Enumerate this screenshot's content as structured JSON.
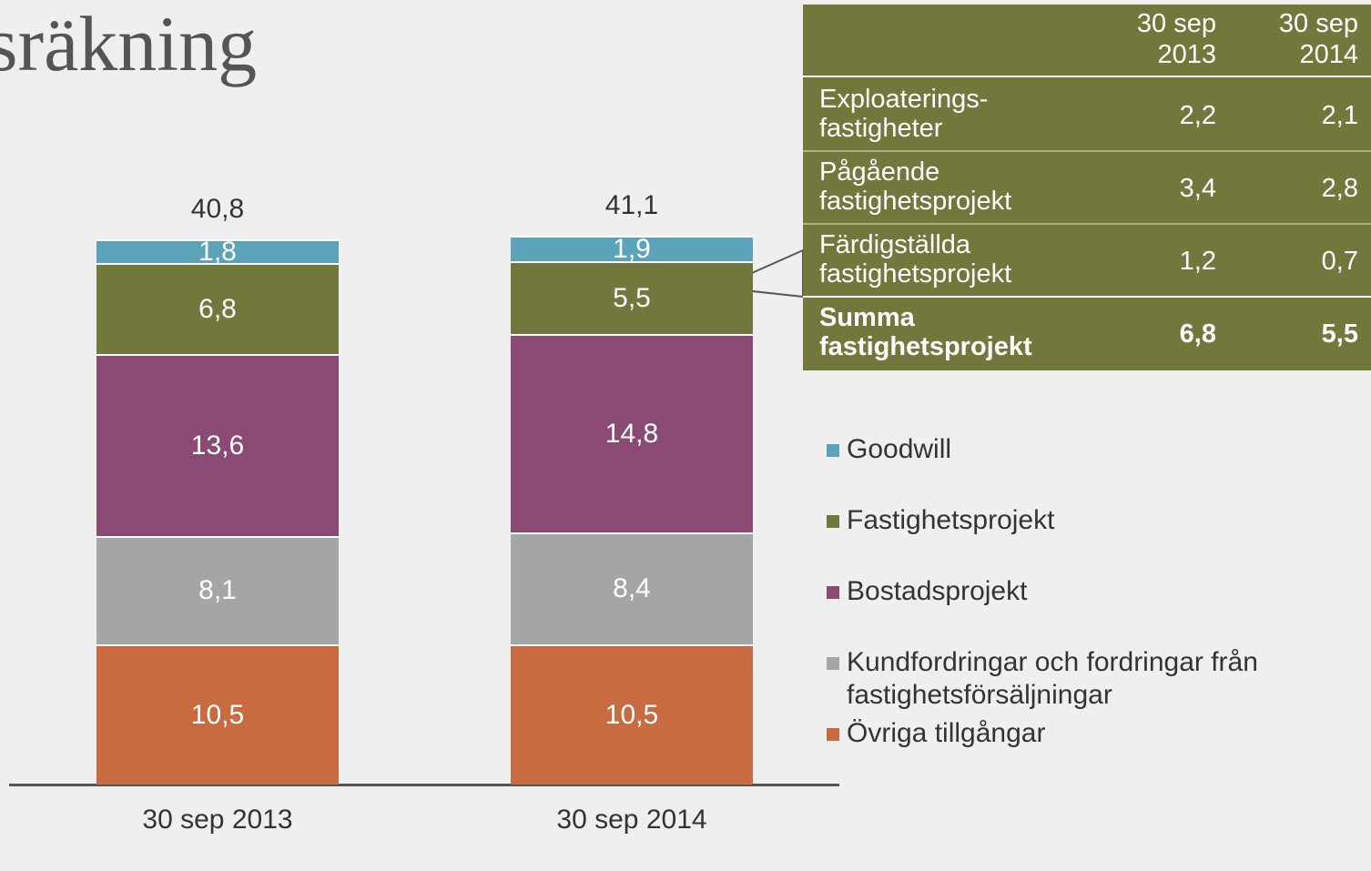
{
  "title": "sräkning",
  "chart_data": {
    "type": "stacked-bar",
    "categories": [
      "30 sep 2013",
      "30 sep 2014"
    ],
    "totals": [
      40.8,
      41.1
    ],
    "total_labels": [
      "40,8",
      "41,1"
    ],
    "series": [
      {
        "name": "Övriga tillgångar",
        "color": "#c96b40",
        "values": [
          10.5,
          10.5
        ],
        "value_labels": [
          "10,5",
          "10,5"
        ]
      },
      {
        "name": "Kundfordringar och fordringar från fastighetsförsäljningar",
        "color": "#a5a5a5",
        "values": [
          8.1,
          8.4
        ],
        "value_labels": [
          "8,1",
          "8,4"
        ]
      },
      {
        "name": "Bostadsprojekt",
        "color": "#8a4a74",
        "values": [
          13.6,
          14.8
        ],
        "value_labels": [
          "13,6",
          "14,8"
        ]
      },
      {
        "name": "Fastighetsprojekt",
        "color": "#72773c",
        "values": [
          6.8,
          5.5
        ],
        "value_labels": [
          "6,8",
          "5,5"
        ]
      },
      {
        "name": "Goodwill",
        "color": "#5ba3b8",
        "values": [
          1.8,
          1.9
        ],
        "value_labels": [
          "1,8",
          "1,9"
        ]
      }
    ]
  },
  "table": {
    "columns": [
      "30 sep 2013",
      "30 sep 2014"
    ],
    "rows": [
      {
        "label": "Exploaterings- fastigheter",
        "values": [
          "2,2",
          "2,1"
        ]
      },
      {
        "label": "Pågående fastighetsprojekt",
        "values": [
          "3,4",
          "2,8"
        ]
      },
      {
        "label": "Färdigställda fastighetsprojekt",
        "values": [
          "1,2",
          "0,7"
        ]
      },
      {
        "label": "Summa fastighetsprojekt",
        "values": [
          "6,8",
          "5,5"
        ]
      }
    ]
  }
}
